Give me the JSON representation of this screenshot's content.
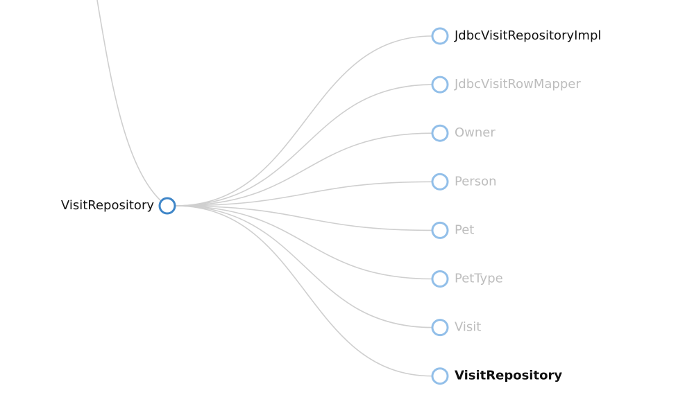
{
  "root": {
    "label": "VisitRepository"
  },
  "children": [
    {
      "label": "JdbcVisitRepositoryImpl",
      "color": "#111111",
      "bold": false
    },
    {
      "label": "JdbcVisitRowMapper",
      "color": "#bdbdbd",
      "bold": false
    },
    {
      "label": "Owner",
      "color": "#bdbdbd",
      "bold": false
    },
    {
      "label": "Person",
      "color": "#bdbdbd",
      "bold": false
    },
    {
      "label": "Pet",
      "color": "#bdbdbd",
      "bold": false
    },
    {
      "label": "PetType",
      "color": "#bdbdbd",
      "bold": false
    },
    {
      "label": "Visit",
      "color": "#bdbdbd",
      "bold": false
    },
    {
      "label": "VisitRepository",
      "color": "#111111",
      "bold": true
    }
  ]
}
